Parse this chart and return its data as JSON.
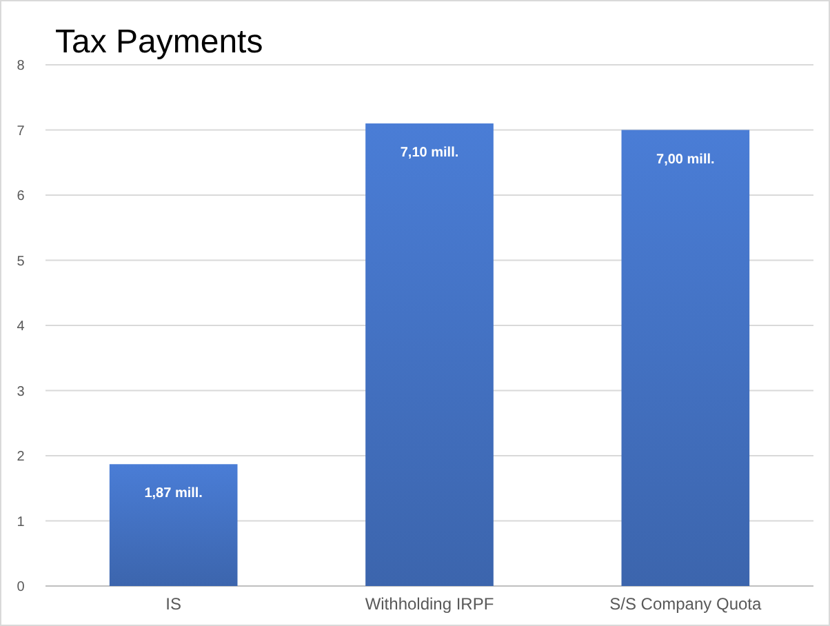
{
  "chart_data": {
    "type": "bar",
    "title": "Tax Payments",
    "categories": [
      "IS",
      "Withholding IRPF",
      "S/S Company Quota"
    ],
    "values": [
      1.87,
      7.1,
      7.0
    ],
    "value_labels": [
      "1,87 mill.",
      "7,10 mill.",
      "7,00 mill."
    ],
    "color": "#4472c4",
    "ylim": [
      0,
      8
    ],
    "yticks": [
      0,
      1,
      2,
      3,
      4,
      5,
      6,
      7,
      8
    ],
    "grid": "y"
  }
}
